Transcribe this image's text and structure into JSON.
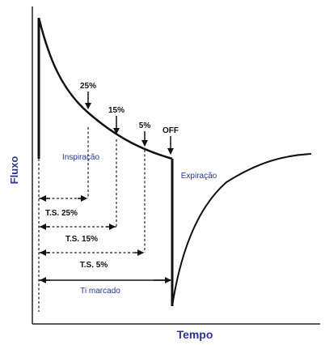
{
  "axes": {
    "y_label": "Fluxo",
    "x_label": "Tempo"
  },
  "phases": {
    "inspiration": "Inspiração",
    "expiration": "Expiração"
  },
  "thresholds": [
    {
      "arrow_label": "25%",
      "span_label": "T.S. 25%"
    },
    {
      "arrow_label": "15%",
      "span_label": "T.S. 15%"
    },
    {
      "arrow_label": "5%",
      "span_label": "T.S. 5%"
    }
  ],
  "off_label": "OFF",
  "ti_label": "Ti marcado",
  "colors": {
    "text_blue": "#2b3590",
    "line": "#111111"
  }
}
